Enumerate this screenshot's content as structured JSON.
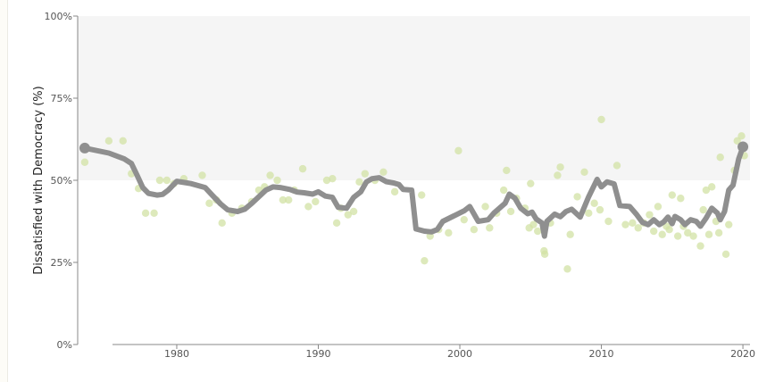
{
  "chart_data": {
    "type": "line",
    "ylabel": "Dissatisfied with Democracy (%)",
    "xlim": [
      1973,
      2020.5
    ],
    "ylim": [
      0,
      100
    ],
    "x_ticks": [
      1980,
      1990,
      2000,
      2010,
      2020
    ],
    "x_tick_labels": [
      "1980",
      "1990",
      "2000",
      "2010",
      "2020"
    ],
    "y_ticks": [
      0,
      25,
      50,
      75,
      100
    ],
    "y_tick_labels": [
      "0%",
      "25%",
      "50%",
      "75%",
      "100%"
    ],
    "shaded_band": [
      50,
      100
    ],
    "colors": {
      "trend": "#8f8f8f",
      "survey_points": "#d2e2a4",
      "band": "#f5f5f5"
    },
    "series": [
      {
        "kind": "line",
        "points": [
          [
            1973.5,
            59.8
          ],
          [
            1975.2,
            58.3
          ],
          [
            1976.3,
            56.5
          ],
          [
            1976.8,
            55.1
          ],
          [
            1977.2,
            51.5
          ],
          [
            1977.6,
            47.8
          ],
          [
            1978.0,
            46.0
          ],
          [
            1978.6,
            45.5
          ],
          [
            1979.0,
            45.7
          ],
          [
            1979.4,
            47.0
          ],
          [
            1979.8,
            48.8
          ],
          [
            1980.0,
            49.7
          ],
          [
            1980.6,
            49.3
          ],
          [
            1981.0,
            49.0
          ],
          [
            1982.0,
            47.8
          ],
          [
            1982.5,
            45.5
          ],
          [
            1983.1,
            42.8
          ],
          [
            1983.6,
            41.0
          ],
          [
            1984.3,
            40.5
          ],
          [
            1984.8,
            41.2
          ],
          [
            1985.3,
            43.0
          ],
          [
            1985.8,
            45.0
          ],
          [
            1986.3,
            47.0
          ],
          [
            1986.8,
            48.0
          ],
          [
            1987.3,
            47.8
          ],
          [
            1988.0,
            47.2
          ],
          [
            1988.5,
            46.4
          ],
          [
            1989.0,
            46.2
          ],
          [
            1989.6,
            45.8
          ],
          [
            1990.0,
            46.5
          ],
          [
            1990.5,
            45.2
          ],
          [
            1991.0,
            44.8
          ],
          [
            1991.4,
            41.8
          ],
          [
            1992.0,
            41.5
          ],
          [
            1992.5,
            44.8
          ],
          [
            1993.0,
            46.5
          ],
          [
            1993.4,
            49.5
          ],
          [
            1993.8,
            50.5
          ],
          [
            1994.3,
            50.8
          ],
          [
            1994.8,
            49.6
          ],
          [
            1995.3,
            49.2
          ],
          [
            1995.7,
            48.7
          ],
          [
            1996.0,
            47.2
          ],
          [
            1996.6,
            47.0
          ],
          [
            1996.9,
            35.2
          ],
          [
            1997.5,
            34.5
          ],
          [
            1998.0,
            34.3
          ],
          [
            1998.4,
            35.0
          ],
          [
            1998.8,
            37.5
          ],
          [
            1999.5,
            39.0
          ],
          [
            2000.3,
            40.7
          ],
          [
            2000.7,
            42.0
          ],
          [
            2001.3,
            37.5
          ],
          [
            2002.0,
            38.0
          ],
          [
            2002.4,
            40.0
          ],
          [
            2002.8,
            41.5
          ],
          [
            2003.2,
            43.0
          ],
          [
            2003.5,
            45.8
          ],
          [
            2003.9,
            44.5
          ],
          [
            2004.3,
            41.5
          ],
          [
            2004.8,
            39.8
          ],
          [
            2005.1,
            40.3
          ],
          [
            2005.4,
            38.2
          ],
          [
            2005.8,
            37.0
          ],
          [
            2005.98,
            33.0
          ],
          [
            2006.15,
            37.5
          ],
          [
            2006.7,
            39.7
          ],
          [
            2007.1,
            38.9
          ],
          [
            2007.5,
            40.5
          ],
          [
            2007.9,
            41.2
          ],
          [
            2008.5,
            38.8
          ],
          [
            2009.1,
            45.0
          ],
          [
            2009.7,
            50.3
          ],
          [
            2010.0,
            48.0
          ],
          [
            2010.4,
            49.5
          ],
          [
            2010.9,
            48.9
          ],
          [
            2011.3,
            42.3
          ],
          [
            2012.0,
            42.0
          ],
          [
            2012.5,
            39.5
          ],
          [
            2012.9,
            37.2
          ],
          [
            2013.3,
            36.5
          ],
          [
            2013.7,
            38.0
          ],
          [
            2014.1,
            36.5
          ],
          [
            2014.4,
            37.3
          ],
          [
            2014.7,
            38.8
          ],
          [
            2015.0,
            36.8
          ],
          [
            2015.2,
            39.0
          ],
          [
            2015.6,
            38.0
          ],
          [
            2015.9,
            36.5
          ],
          [
            2016.3,
            38.0
          ],
          [
            2016.7,
            37.5
          ],
          [
            2017.0,
            36.0
          ],
          [
            2017.4,
            38.5
          ],
          [
            2017.8,
            41.5
          ],
          [
            2018.2,
            40.0
          ],
          [
            2018.4,
            38.0
          ],
          [
            2018.7,
            40.5
          ],
          [
            2019.0,
            47.0
          ],
          [
            2019.3,
            48.5
          ],
          [
            2019.7,
            56.5
          ],
          [
            2020.0,
            60.2
          ]
        ]
      },
      {
        "kind": "scatter",
        "points": [
          [
            1973.5,
            55.5
          ],
          [
            1975.2,
            62.0
          ],
          [
            1976.2,
            62.0
          ],
          [
            1976.8,
            52.0
          ],
          [
            1977.3,
            47.5
          ],
          [
            1977.8,
            40.0
          ],
          [
            1978.4,
            40.0
          ],
          [
            1978.8,
            50.0
          ],
          [
            1979.3,
            50.0
          ],
          [
            1979.8,
            49.0
          ],
          [
            1980.5,
            50.5
          ],
          [
            1981.8,
            51.5
          ],
          [
            1982.3,
            43.0
          ],
          [
            1982.8,
            44.0
          ],
          [
            1983.2,
            37.0
          ],
          [
            1983.9,
            40.0
          ],
          [
            1984.6,
            41.5
          ],
          [
            1985.3,
            43.5
          ],
          [
            1985.8,
            47.0
          ],
          [
            1986.2,
            48.0
          ],
          [
            1986.6,
            51.5
          ],
          [
            1987.1,
            50.0
          ],
          [
            1987.5,
            44.0
          ],
          [
            1987.9,
            44.0
          ],
          [
            1988.3,
            47.0
          ],
          [
            1988.9,
            53.5
          ],
          [
            1989.3,
            42.0
          ],
          [
            1989.8,
            43.5
          ],
          [
            1990.6,
            50.0
          ],
          [
            1991.0,
            50.5
          ],
          [
            1991.3,
            37.0
          ],
          [
            1991.6,
            41.5
          ],
          [
            1992.1,
            39.5
          ],
          [
            1992.5,
            40.5
          ],
          [
            1992.9,
            49.5
          ],
          [
            1993.3,
            52.0
          ],
          [
            1994.0,
            50.0
          ],
          [
            1994.6,
            52.5
          ],
          [
            1995.4,
            46.5
          ],
          [
            1997.3,
            45.5
          ],
          [
            1997.5,
            25.5
          ],
          [
            1997.9,
            33.0
          ],
          [
            1998.5,
            35.0
          ],
          [
            1999.2,
            34.0
          ],
          [
            1999.9,
            59.0
          ],
          [
            2000.3,
            38.0
          ],
          [
            2001.0,
            35.0
          ],
          [
            2001.8,
            42.0
          ],
          [
            2002.1,
            35.5
          ],
          [
            2002.6,
            40.0
          ],
          [
            2003.1,
            47.0
          ],
          [
            2003.3,
            53.0
          ],
          [
            2003.6,
            40.5
          ],
          [
            2004.0,
            44.5
          ],
          [
            2004.6,
            41.5
          ],
          [
            2004.9,
            35.5
          ],
          [
            2005.0,
            49.0
          ],
          [
            2005.2,
            36.5
          ],
          [
            2005.5,
            34.5
          ],
          [
            2005.95,
            28.5
          ],
          [
            2006.0,
            27.5
          ],
          [
            2006.4,
            37.0
          ],
          [
            2006.9,
            51.5
          ],
          [
            2007.1,
            54.0
          ],
          [
            2007.6,
            23.0
          ],
          [
            2007.8,
            33.5
          ],
          [
            2008.3,
            45.0
          ],
          [
            2008.8,
            52.5
          ],
          [
            2009.1,
            40.0
          ],
          [
            2009.5,
            43.0
          ],
          [
            2009.9,
            41.0
          ],
          [
            2010.0,
            68.5
          ],
          [
            2010.5,
            37.5
          ],
          [
            2011.1,
            54.5
          ],
          [
            2011.7,
            36.5
          ],
          [
            2012.2,
            37.0
          ],
          [
            2012.6,
            35.5
          ],
          [
            2013.0,
            37.0
          ],
          [
            2013.4,
            39.5
          ],
          [
            2013.7,
            34.5
          ],
          [
            2014.0,
            42.0
          ],
          [
            2014.3,
            33.5
          ],
          [
            2014.6,
            36.0
          ],
          [
            2014.8,
            35.0
          ],
          [
            2015.0,
            45.5
          ],
          [
            2015.4,
            33.0
          ],
          [
            2015.6,
            44.5
          ],
          [
            2015.8,
            36.0
          ],
          [
            2016.1,
            34.0
          ],
          [
            2016.5,
            33.0
          ],
          [
            2017.0,
            30.0
          ],
          [
            2017.2,
            41.0
          ],
          [
            2017.4,
            47.0
          ],
          [
            2017.6,
            33.5
          ],
          [
            2017.8,
            48.0
          ],
          [
            2018.1,
            37.5
          ],
          [
            2018.3,
            34.0
          ],
          [
            2018.4,
            57.0
          ],
          [
            2018.8,
            27.5
          ],
          [
            2019.0,
            36.5
          ],
          [
            2019.4,
            53.0
          ],
          [
            2019.6,
            62.0
          ],
          [
            2019.9,
            63.5
          ],
          [
            2020.1,
            57.5
          ]
        ]
      }
    ],
    "endpoints": [
      [
        1973.5,
        59.8
      ],
      [
        2020.0,
        60.2
      ]
    ]
  }
}
